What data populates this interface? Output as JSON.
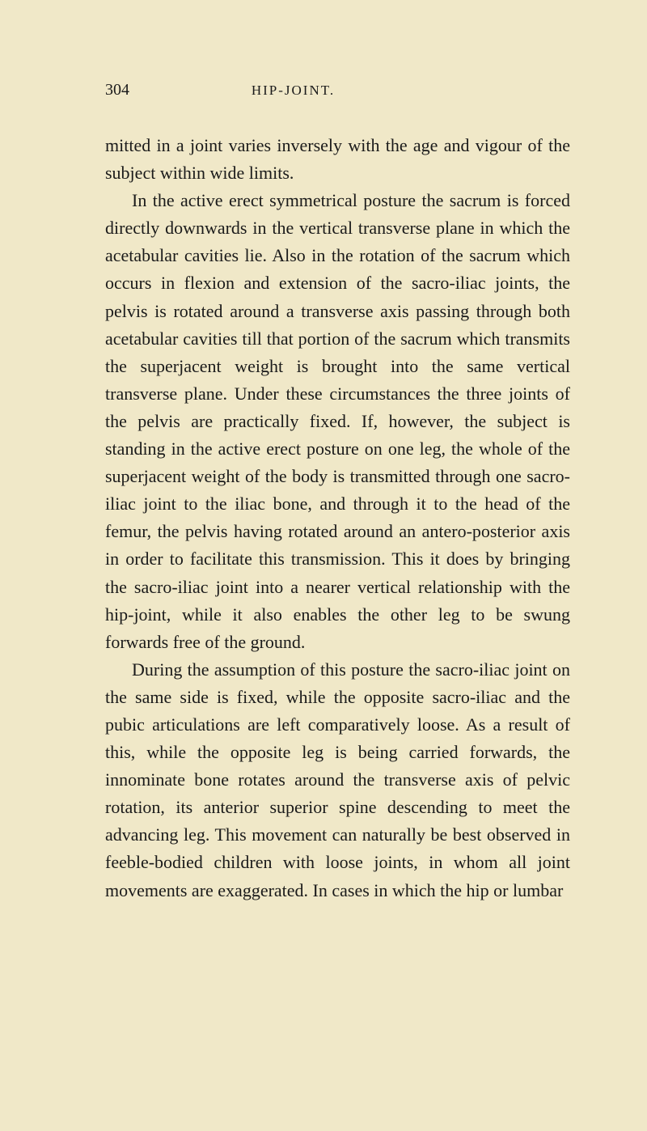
{
  "page": {
    "number": "304",
    "running_title": "HIP-JOINT.",
    "background_color": "#f0e8c8",
    "text_color": "#1a1a1a",
    "body_fontsize": 22,
    "header_fontsize": 20,
    "paragraphs": [
      "mitted in a joint varies inversely with the age and vigour of the subject within wide limits.",
      "In the active erect symmetrical posture the sacrum is forced directly downwards in the vertical trans­verse plane in which the acetabular cavities lie. Also in the rotation of the sacrum which occurs in flexion and extension of the sacro-iliac joints, the pelvis is rotated around a transverse axis passing through both acetabular cavities till that portion of the sacrum which transmits the superjacent weight is brought into the same vertical transverse plane. Under these circumstances the three joints of the pelvis are practically fixed. If, however, the subject is standing in the active erect posture on one leg, the whole of the superjacent weight of the body is trans­mitted through one sacro-iliac joint to the iliac bone, and through it to the head of the femur, the pelvis having rotated around an antero-posterior axis in order to facilitate this transmission. This it does by bringing the sacro-iliac joint into a nearer vertical relationship with the hip-joint, while it also enables the other leg to be swung forwards free of the ground.",
      "During the assumption of this posture the sacro-iliac joint on the same side is fixed, while the opposite sacro-iliac and the pubic articulations are left com­paratively loose. As a result of this, while the opposite leg is being carried forwards, the innominate bone rotates around the transverse axis of pelvic rotation, its anterior superior spine descending to meet the advancing leg. This movement can natu­rally be best observed in feeble-bodied children with loose joints, in whom all joint movements are ex­aggerated. In cases in which the hip or lumbar"
    ]
  }
}
